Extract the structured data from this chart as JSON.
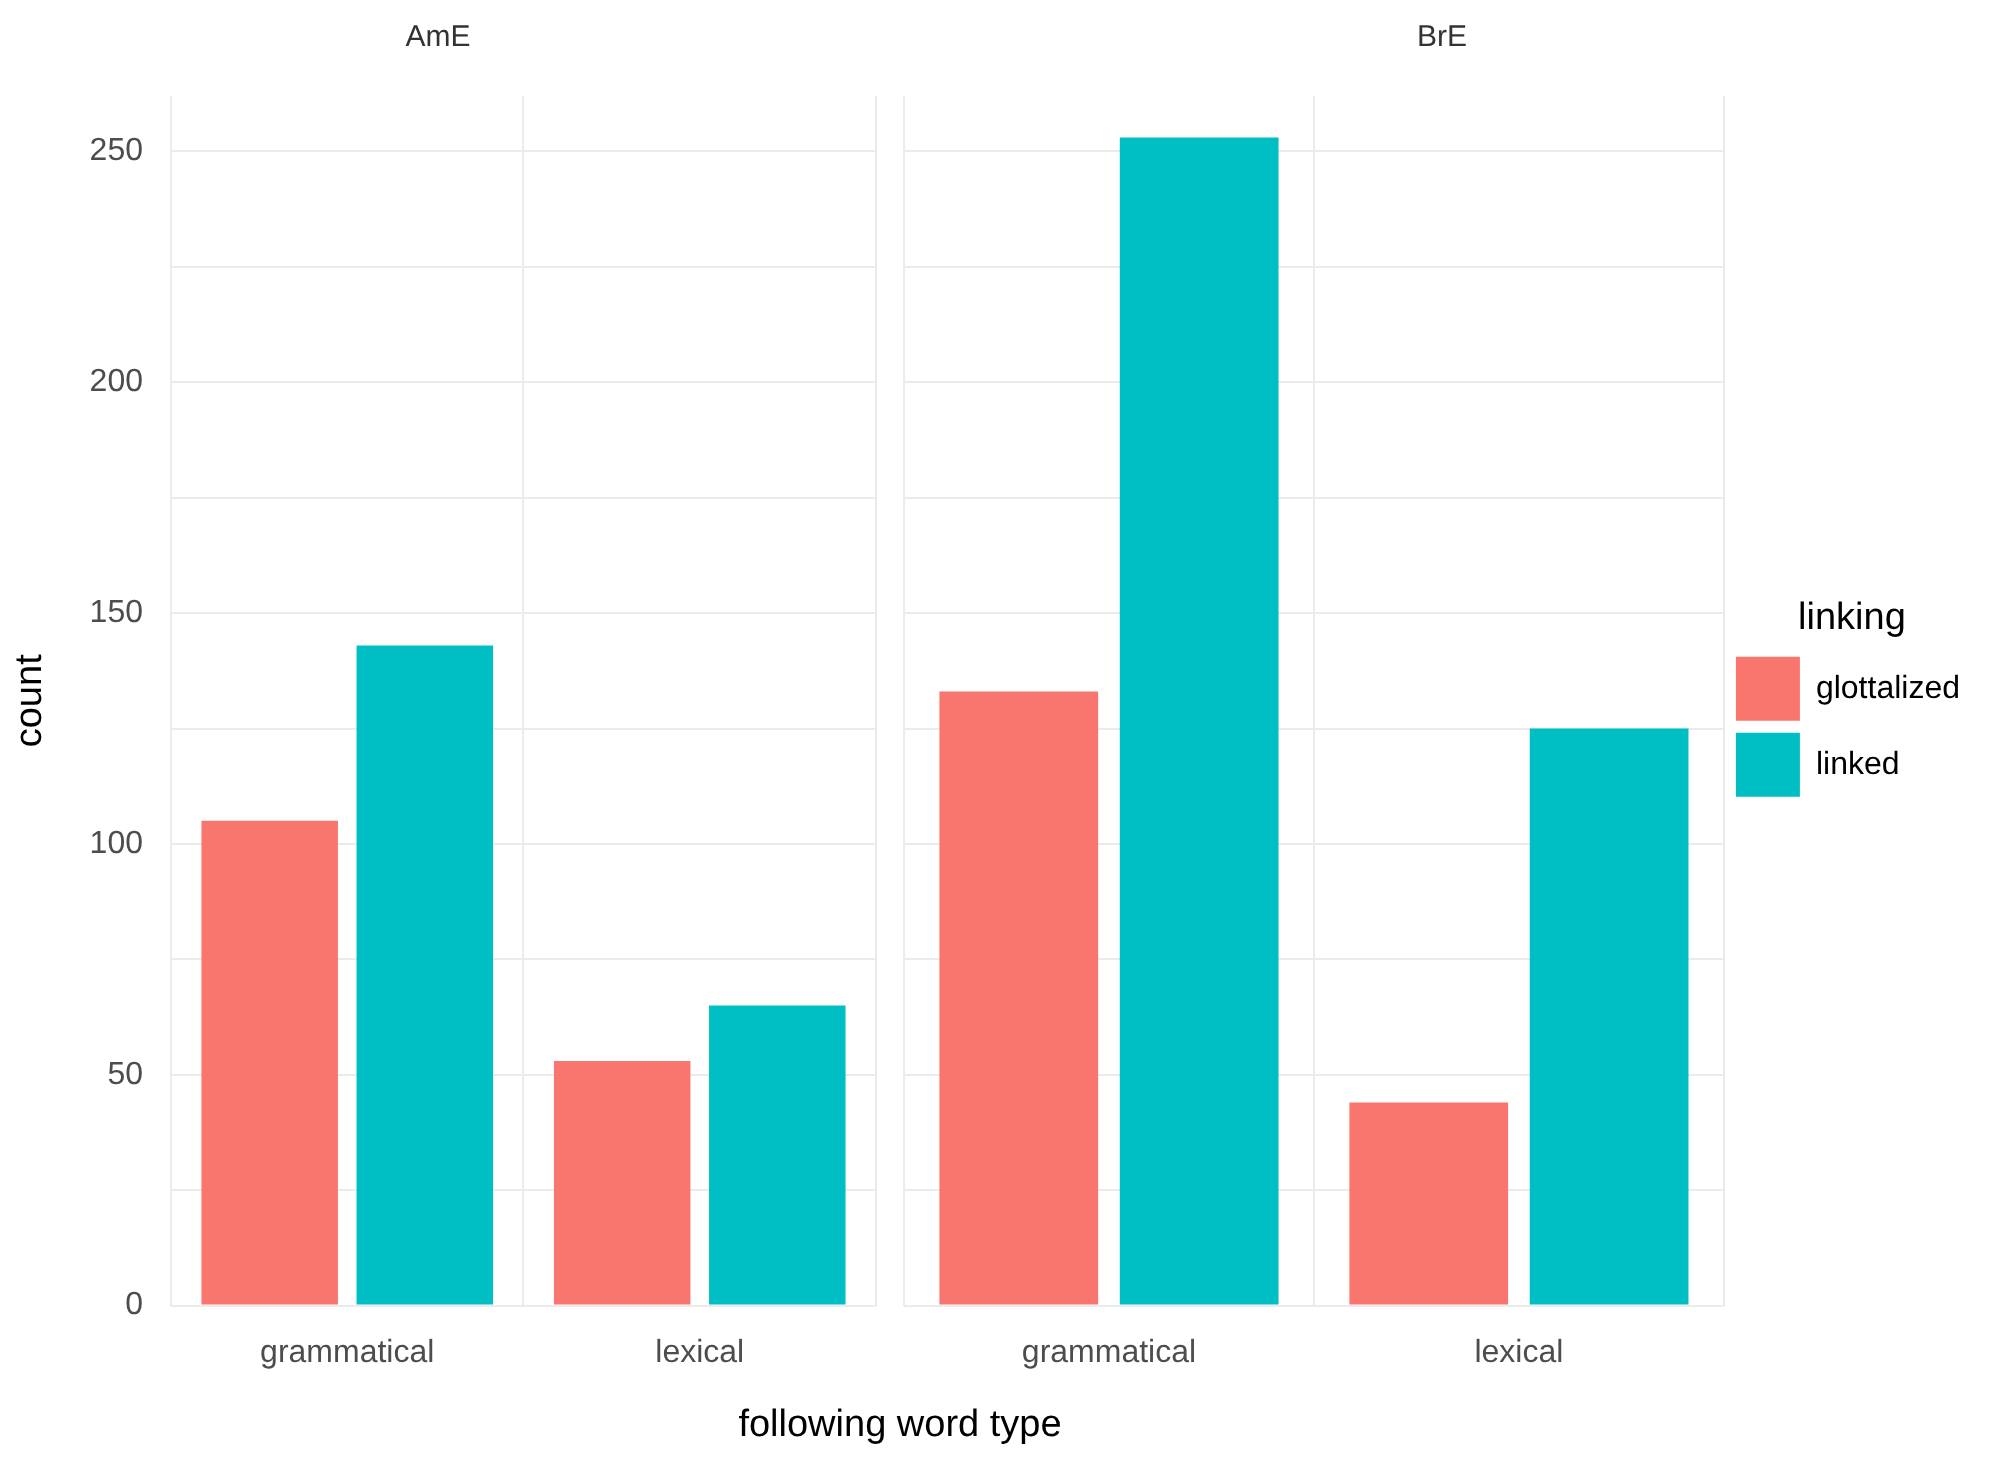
{
  "chart_data": [
    {
      "type": "bar",
      "title": "AmE",
      "xlabel": "following word type",
      "ylabel": "count",
      "categories": [
        "grammatical",
        "lexical"
      ],
      "series": [
        {
          "color": "#f8766d",
          "values": [
            105,
            53
          ]
        },
        {
          "color": "#00bfc4",
          "values": [
            143,
            65
          ]
        }
      ],
      "ylim": [
        0,
        262
      ],
      "yticks": [
        0,
        {
          "value": 25,
          "label": null
        },
        50,
        {
          "value": 75,
          "label": null
        },
        100,
        {
          "value": 125,
          "label": null
        },
        150,
        {
          "value": 175,
          "label": null
        },
        200,
        {
          "value": 225,
          "label": null
        },
        250
      ],
      "grid": true,
      "legend": false
    },
    {
      "type": "bar",
      "title": "BrE",
      "legend_title": "linking",
      "categories": [
        "grammatical",
        "lexical"
      ],
      "series": [
        {
          "name": "glottalized",
          "color": "#f8766d",
          "values": [
            133,
            44
          ]
        },
        {
          "name": "linked",
          "color": "#00bfc4",
          "values": [
            253,
            125
          ]
        }
      ],
      "ylim": [
        0,
        262
      ],
      "yticks": [
        0,
        {
          "value": 25,
          "label": null
        },
        50,
        {
          "value": 75,
          "label": null
        },
        100,
        {
          "value": 125,
          "label": null
        },
        150,
        {
          "value": 175,
          "label": null
        },
        200,
        {
          "value": 225,
          "label": null
        },
        250
      ],
      "grid": true,
      "legend": "right",
      "tick_labels": "x"
    }
  ]
}
